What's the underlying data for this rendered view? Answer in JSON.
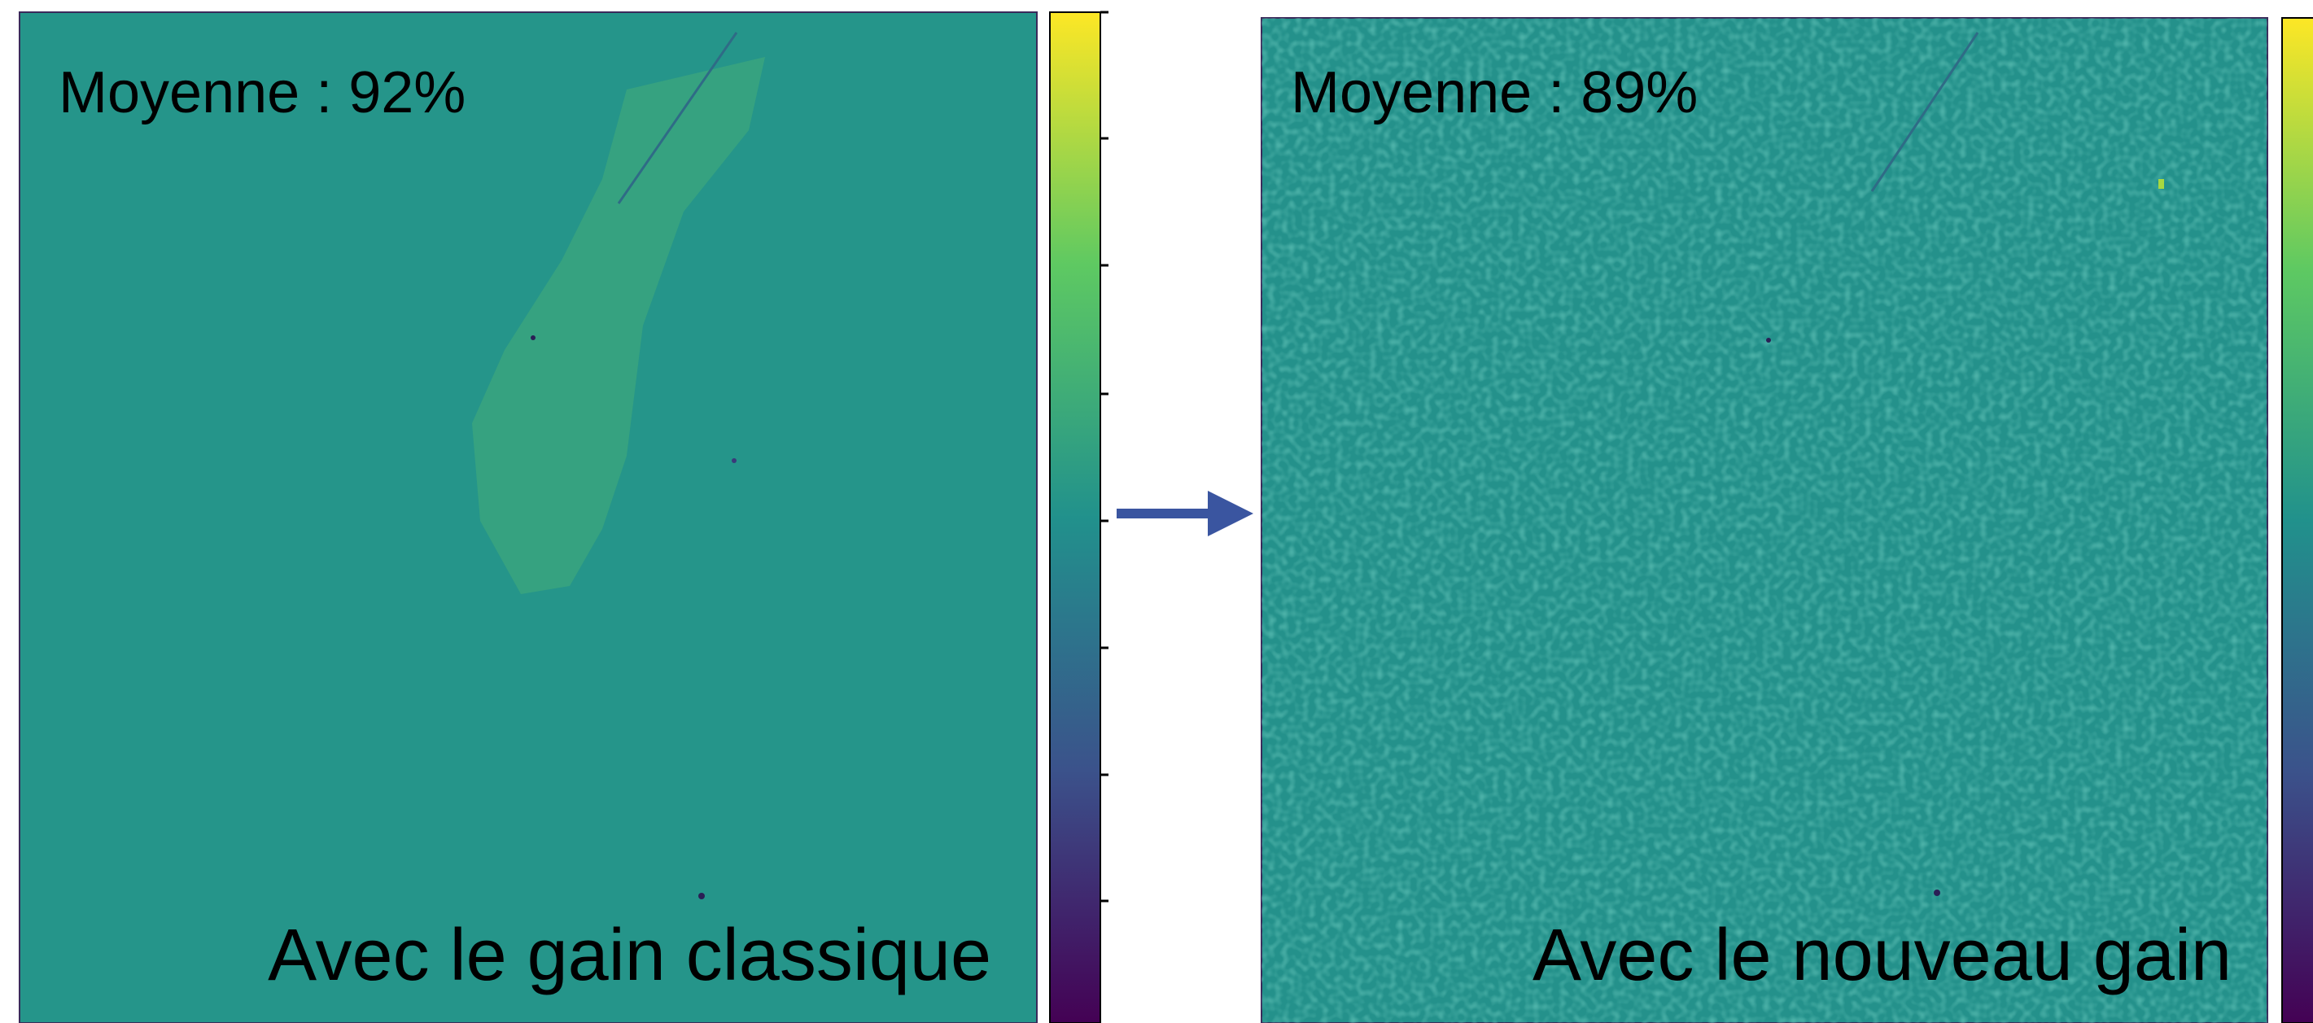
{
  "panels": [
    {
      "mean_label": "Moyenne : 92%",
      "caption": "Avec le gain classique"
    },
    {
      "mean_label": "Moyenne : 89%",
      "caption": "Avec le nouveau gain"
    }
  ]
}
